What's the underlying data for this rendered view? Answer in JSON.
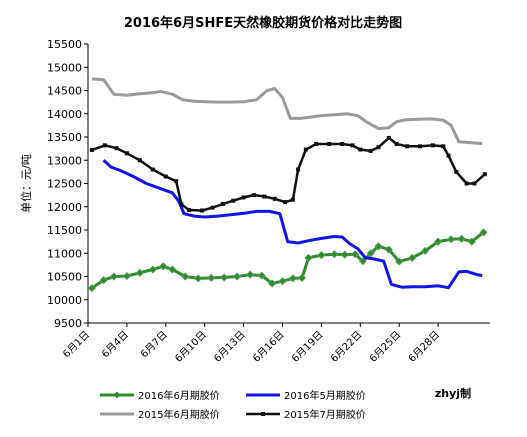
{
  "chart_data": {
    "type": "line",
    "title": "2016年6月SHFE天然橡胶期货价格对比走势图",
    "ylabel": "单位：元/吨",
    "xlabel": "",
    "ylim": [
      9500,
      15500
    ],
    "yticks": [
      9500,
      10000,
      10500,
      11000,
      11500,
      12000,
      12500,
      13000,
      13500,
      14000,
      14500,
      15000,
      15500
    ],
    "xlim": [
      0,
      30
    ],
    "xticks": [
      {
        "x": 0,
        "label": "6月1日"
      },
      {
        "x": 3,
        "label": "6月4日"
      },
      {
        "x": 6,
        "label": "6月7日"
      },
      {
        "x": 9,
        "label": "6月10日"
      },
      {
        "x": 12,
        "label": "6月13日"
      },
      {
        "x": 15,
        "label": "6月16日"
      },
      {
        "x": 18,
        "label": "6月19日"
      },
      {
        "x": 21,
        "label": "6月22日"
      },
      {
        "x": 24,
        "label": "6月25日"
      },
      {
        "x": 27,
        "label": "6月28日"
      }
    ],
    "grid": false,
    "legend_position": "bottom",
    "credit": "zhyj制",
    "series": [
      {
        "name": "2016年6月期胶价",
        "color": "#2e8b2e",
        "marker": "diamond",
        "width": 3,
        "points": [
          [
            0.3,
            10250
          ],
          [
            1.2,
            10420
          ],
          [
            2,
            10500
          ],
          [
            3,
            10510
          ],
          [
            4,
            10580
          ],
          [
            5,
            10650
          ],
          [
            5.8,
            10720
          ],
          [
            6.5,
            10650
          ],
          [
            7.5,
            10500
          ],
          [
            8.5,
            10460
          ],
          [
            9.5,
            10470
          ],
          [
            10.5,
            10480
          ],
          [
            11.5,
            10500
          ],
          [
            12.5,
            10540
          ],
          [
            13.4,
            10520
          ],
          [
            14.2,
            10350
          ],
          [
            15,
            10400
          ],
          [
            15.8,
            10460
          ],
          [
            16.5,
            10470
          ],
          [
            17,
            10900
          ],
          [
            18,
            10960
          ],
          [
            19,
            10980
          ],
          [
            19.8,
            10970
          ],
          [
            20.6,
            10980
          ],
          [
            21.2,
            10830
          ],
          [
            21.8,
            11000
          ],
          [
            22.4,
            11150
          ],
          [
            23.2,
            11080
          ],
          [
            24,
            10820
          ],
          [
            25,
            10900
          ],
          [
            26,
            11050
          ],
          [
            27,
            11250
          ],
          [
            28,
            11300
          ],
          [
            28.8,
            11310
          ],
          [
            29.6,
            11250
          ],
          [
            30.5,
            11450
          ]
        ]
      },
      {
        "name": "2016年5月期胶价",
        "color": "#1414e6",
        "marker": "none",
        "width": 3,
        "points": [
          [
            1.2,
            13000
          ],
          [
            1.8,
            12850
          ],
          [
            2.5,
            12780
          ],
          [
            3.5,
            12650
          ],
          [
            4.5,
            12500
          ],
          [
            5.5,
            12400
          ],
          [
            6.5,
            12300
          ],
          [
            7,
            12120
          ],
          [
            7.4,
            11850
          ],
          [
            8.2,
            11800
          ],
          [
            9,
            11780
          ],
          [
            10,
            11800
          ],
          [
            11,
            11830
          ],
          [
            12,
            11860
          ],
          [
            13,
            11900
          ],
          [
            14,
            11900
          ],
          [
            14.8,
            11850
          ],
          [
            15.4,
            11250
          ],
          [
            16.2,
            11220
          ],
          [
            17,
            11270
          ],
          [
            18,
            11320
          ],
          [
            19,
            11360
          ],
          [
            19.6,
            11350
          ],
          [
            20.2,
            11200
          ],
          [
            20.8,
            11100
          ],
          [
            21.4,
            10900
          ],
          [
            22,
            10880
          ],
          [
            22.8,
            10830
          ],
          [
            23.4,
            10330
          ],
          [
            24.2,
            10270
          ],
          [
            25,
            10280
          ],
          [
            26,
            10280
          ],
          [
            27,
            10300
          ],
          [
            27.8,
            10260
          ],
          [
            28.6,
            10600
          ],
          [
            29.2,
            10610
          ],
          [
            30,
            10540
          ],
          [
            30.4,
            10520
          ]
        ]
      },
      {
        "name": "2015年6月期胶价",
        "color": "#9a9a9a",
        "marker": "none",
        "width": 3,
        "points": [
          [
            0.3,
            14750
          ],
          [
            1.2,
            14730
          ],
          [
            2,
            14420
          ],
          [
            3,
            14400
          ],
          [
            4,
            14430
          ],
          [
            5,
            14450
          ],
          [
            5.6,
            14480
          ],
          [
            6.5,
            14420
          ],
          [
            7.3,
            14300
          ],
          [
            8.2,
            14270
          ],
          [
            9,
            14260
          ],
          [
            10,
            14250
          ],
          [
            11,
            14250
          ],
          [
            12,
            14260
          ],
          [
            13,
            14300
          ],
          [
            13.8,
            14500
          ],
          [
            14.4,
            14540
          ],
          [
            15,
            14350
          ],
          [
            15.6,
            13900
          ],
          [
            16.4,
            13900
          ],
          [
            17.2,
            13930
          ],
          [
            18,
            13960
          ],
          [
            19,
            13980
          ],
          [
            20,
            14000
          ],
          [
            20.8,
            13960
          ],
          [
            21.5,
            13820
          ],
          [
            22.4,
            13680
          ],
          [
            23.2,
            13700
          ],
          [
            23.8,
            13830
          ],
          [
            24.5,
            13870
          ],
          [
            25.5,
            13880
          ],
          [
            26.5,
            13890
          ],
          [
            27.4,
            13860
          ],
          [
            28,
            13750
          ],
          [
            28.6,
            13400
          ],
          [
            29.4,
            13380
          ],
          [
            30.4,
            13360
          ]
        ]
      },
      {
        "name": "2015年7月期胶价",
        "color": "#111111",
        "marker": "square",
        "width": 2.5,
        "points": [
          [
            0.3,
            13220
          ],
          [
            1.3,
            13320
          ],
          [
            2.2,
            13260
          ],
          [
            3,
            13150
          ],
          [
            4,
            13000
          ],
          [
            5,
            12800
          ],
          [
            6,
            12650
          ],
          [
            6.8,
            12550
          ],
          [
            7.2,
            12050
          ],
          [
            7.8,
            11930
          ],
          [
            8.8,
            11920
          ],
          [
            9.6,
            11980
          ],
          [
            10.4,
            12060
          ],
          [
            11.2,
            12130
          ],
          [
            12,
            12200
          ],
          [
            12.8,
            12250
          ],
          [
            13.6,
            12220
          ],
          [
            14.4,
            12170
          ],
          [
            15.2,
            12100
          ],
          [
            15.8,
            12150
          ],
          [
            16.2,
            12800
          ],
          [
            16.8,
            13230
          ],
          [
            17.6,
            13350
          ],
          [
            18.6,
            13350
          ],
          [
            19.6,
            13350
          ],
          [
            20.4,
            13320
          ],
          [
            21,
            13230
          ],
          [
            21.8,
            13200
          ],
          [
            22.4,
            13280
          ],
          [
            23.2,
            13480
          ],
          [
            23.8,
            13350
          ],
          [
            24.6,
            13300
          ],
          [
            25.6,
            13300
          ],
          [
            26.6,
            13320
          ],
          [
            27.4,
            13300
          ],
          [
            27.8,
            13100
          ],
          [
            28.4,
            12750
          ],
          [
            29.2,
            12500
          ],
          [
            29.8,
            12500
          ],
          [
            30.6,
            12700
          ]
        ]
      }
    ]
  }
}
